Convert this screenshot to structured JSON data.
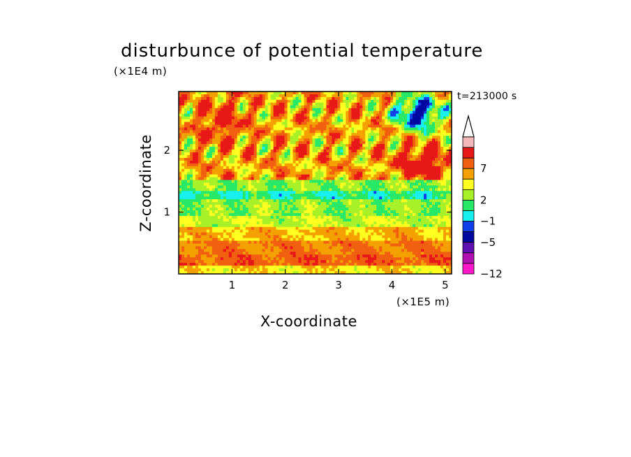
{
  "chart_data": {
    "type": "heatmap",
    "title": "disturbunce of potential temperature",
    "xlabel": "X-coordinate",
    "ylabel": "Z-coordinate",
    "x_unit": "(×1E5 m)",
    "z_unit": "(×1E4 m)",
    "time_label": "t=213000 s",
    "xlim": [
      0,
      5.12
    ],
    "ylim": [
      0,
      2.95
    ],
    "xticks": [
      "1",
      "2",
      "3",
      "4",
      "5"
    ],
    "yticks": [
      "1",
      "2"
    ],
    "colorbar": {
      "labels": [
        "7",
        "2",
        "−1",
        "−5",
        "−12"
      ],
      "colors": [
        "#f4b8b8",
        "#e81818",
        "#f06010",
        "#f4a000",
        "#ffff20",
        "#a8f028",
        "#28e868",
        "#18f0f0",
        "#1040e8",
        "#0008a0",
        "#6010b0",
        "#b010b0",
        "#ff18c8"
      ],
      "extend": "max"
    }
  }
}
